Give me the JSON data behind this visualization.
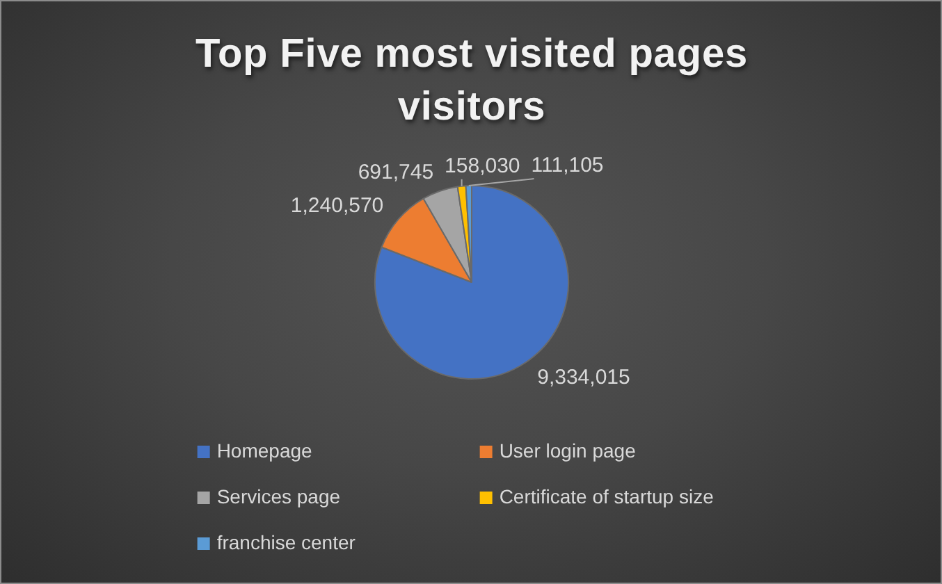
{
  "chart_data": {
    "type": "pie",
    "title": "Top Five most visited pages visitors",
    "categories": [
      "Homepage",
      "User login page",
      "Services page",
      "Certificate of startup size",
      "franchise center"
    ],
    "values": [
      9334015,
      1240570,
      691745,
      158030,
      111105
    ],
    "value_labels": [
      "9,334,015",
      "1,240,570",
      "691,745",
      "158,030",
      "111,105"
    ],
    "colors": [
      "#4472c4",
      "#ed7d31",
      "#a5a5a5",
      "#ffc000",
      "#5b9bd5"
    ],
    "legend": "bottom"
  }
}
